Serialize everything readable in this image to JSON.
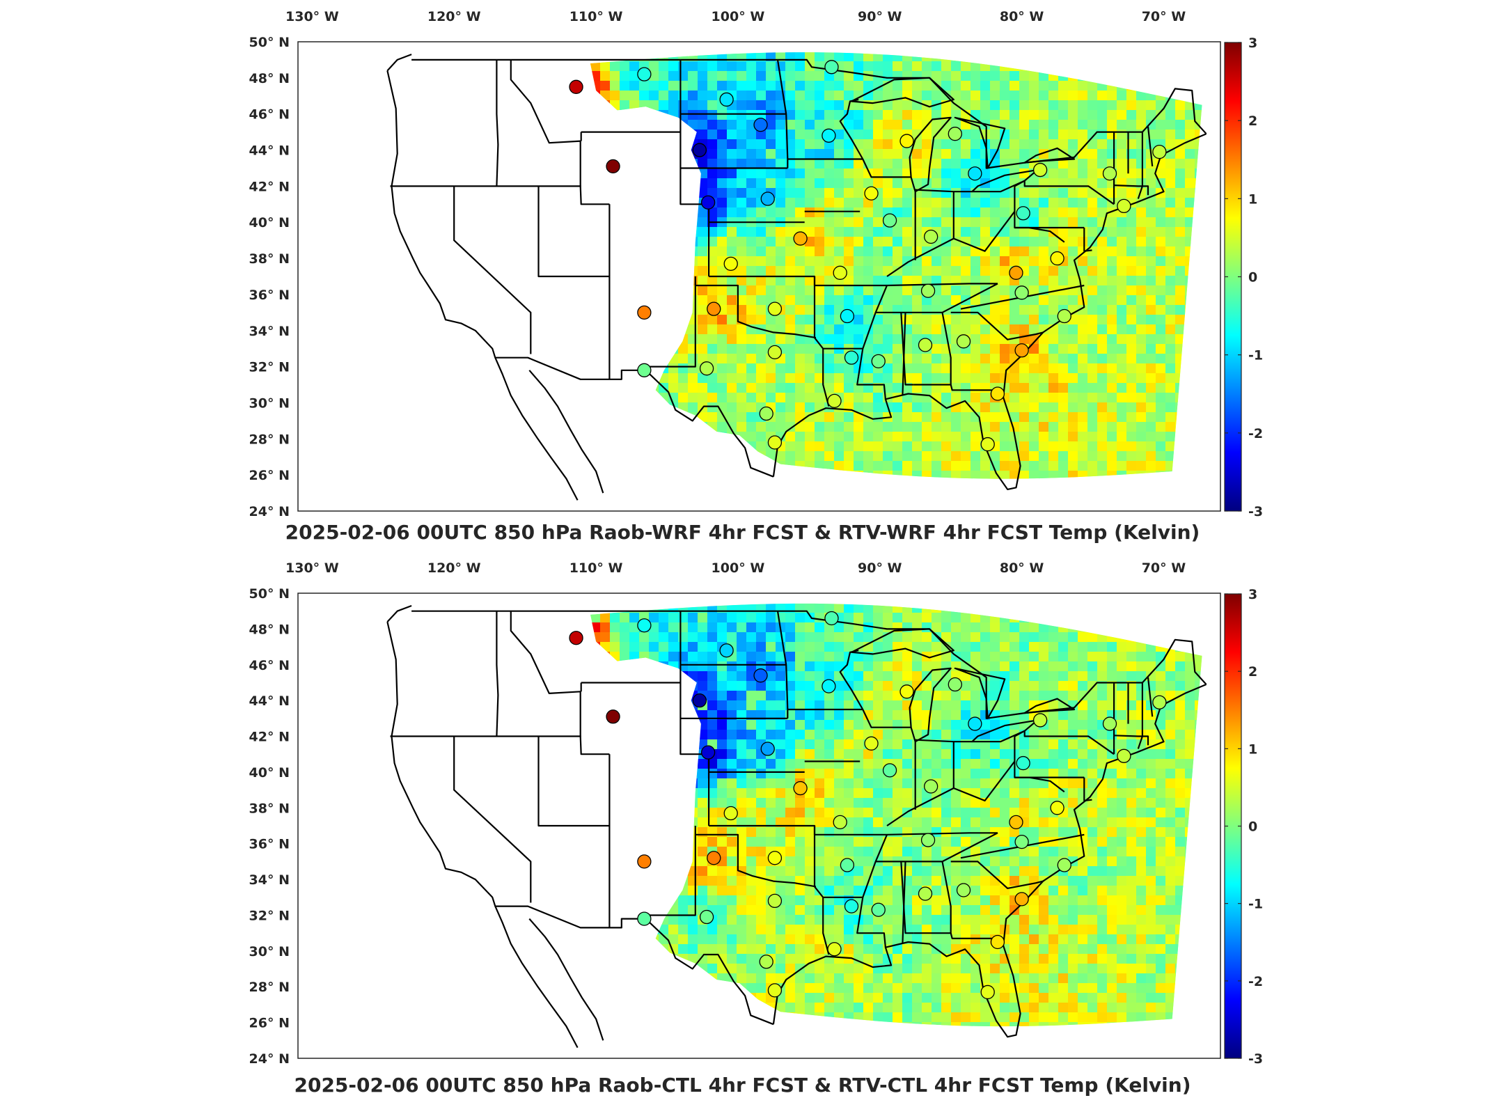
{
  "colors": {
    "jet": [
      "#00007f",
      "#0000ff",
      "#007fff",
      "#00ffff",
      "#7fff7f",
      "#ffff00",
      "#ff7f00",
      "#ff0000",
      "#7f0000"
    ],
    "state_lines": "#000000",
    "frame": "#262626"
  },
  "legend_position": "right (vertical colorbar)",
  "chart_data": [
    {
      "type": "heatmap",
      "title": "2025-02-06 00UTC 850 hPa Raob-WRF 4hr FCST & RTV-WRF 4hr FCST Temp (Kelvin)",
      "lon_ticks": [
        "130° W",
        "120° W",
        "110° W",
        "100° W",
        "90° W",
        "80° W",
        "70° W"
      ],
      "lon_values": [
        -130,
        -120,
        -110,
        -100,
        -90,
        -80,
        -70
      ],
      "lat_ticks": [
        "24° N",
        "26° N",
        "28° N",
        "30° N",
        "32° N",
        "34° N",
        "36° N",
        "38° N",
        "40° N",
        "42° N",
        "44° N",
        "46° N",
        "48° N",
        "50° N"
      ],
      "lat_values": [
        24,
        26,
        28,
        30,
        32,
        34,
        36,
        38,
        40,
        42,
        44,
        46,
        48,
        50
      ],
      "xlim": [
        -131,
        -66
      ],
      "ylim": [
        24,
        50
      ],
      "colorbar": {
        "ticks": [
          "-3",
          "-2",
          "-1",
          "0",
          "1",
          "2",
          "3"
        ],
        "range": [
          -3,
          3
        ],
        "units": "Kelvin"
      },
      "raob_stations": [
        {
          "lon": -111.4,
          "lat": 47.5,
          "value": 2.6
        },
        {
          "lon": -106.6,
          "lat": 48.2,
          "value": -0.6
        },
        {
          "lon": -100.8,
          "lat": 46.8,
          "value": -0.9
        },
        {
          "lon": -98.4,
          "lat": 45.4,
          "value": -1.6
        },
        {
          "lon": -93.6,
          "lat": 44.8,
          "value": -0.8
        },
        {
          "lon": -93.4,
          "lat": 48.6,
          "value": -0.3
        },
        {
          "lon": -108.8,
          "lat": 43.1,
          "value": 3.0
        },
        {
          "lon": -102.7,
          "lat": 44.0,
          "value": -2.8
        },
        {
          "lon": -102.1,
          "lat": 41.1,
          "value": -2.4
        },
        {
          "lon": -97.9,
          "lat": 41.3,
          "value": -1.2
        },
        {
          "lon": -95.6,
          "lat": 39.1,
          "value": 1.2
        },
        {
          "lon": -100.5,
          "lat": 37.7,
          "value": 0.7
        },
        {
          "lon": -92.8,
          "lat": 37.2,
          "value": 0.6
        },
        {
          "lon": -88.1,
          "lat": 44.5,
          "value": 0.8
        },
        {
          "lon": -84.7,
          "lat": 44.9,
          "value": 0.2
        },
        {
          "lon": -83.3,
          "lat": 42.7,
          "value": -0.9
        },
        {
          "lon": -90.6,
          "lat": 41.6,
          "value": 0.7
        },
        {
          "lon": -89.3,
          "lat": 40.1,
          "value": -0.1
        },
        {
          "lon": -86.4,
          "lat": 39.2,
          "value": 0.3
        },
        {
          "lon": -79.9,
          "lat": 40.5,
          "value": -0.4
        },
        {
          "lon": -78.7,
          "lat": 42.9,
          "value": 0.5
        },
        {
          "lon": -73.8,
          "lat": 42.7,
          "value": 0.3
        },
        {
          "lon": -70.3,
          "lat": 43.9,
          "value": 0.4
        },
        {
          "lon": -72.8,
          "lat": 40.9,
          "value": 0.5
        },
        {
          "lon": -77.5,
          "lat": 38.0,
          "value": 0.8
        },
        {
          "lon": -80.4,
          "lat": 37.2,
          "value": 1.3
        },
        {
          "lon": -86.6,
          "lat": 36.2,
          "value": 0.2
        },
        {
          "lon": -80.0,
          "lat": 36.1,
          "value": 0.1
        },
        {
          "lon": -77.0,
          "lat": 34.8,
          "value": 0.3
        },
        {
          "lon": -80.0,
          "lat": 32.9,
          "value": 1.3
        },
        {
          "lon": -81.7,
          "lat": 30.5,
          "value": 0.9
        },
        {
          "lon": -82.4,
          "lat": 27.7,
          "value": 0.6
        },
        {
          "lon": -84.1,
          "lat": 33.4,
          "value": 0.3
        },
        {
          "lon": -86.8,
          "lat": 33.2,
          "value": 0.4
        },
        {
          "lon": -90.1,
          "lat": 32.3,
          "value": -0.1
        },
        {
          "lon": -92.0,
          "lat": 32.5,
          "value": -0.5
        },
        {
          "lon": -92.3,
          "lat": 34.8,
          "value": -0.8
        },
        {
          "lon": -93.2,
          "lat": 30.1,
          "value": 0.5
        },
        {
          "lon": -97.4,
          "lat": 27.8,
          "value": 0.6
        },
        {
          "lon": -98.0,
          "lat": 29.4,
          "value": 0.2
        },
        {
          "lon": -97.4,
          "lat": 32.8,
          "value": 0.5
        },
        {
          "lon": -97.4,
          "lat": 35.2,
          "value": 0.6
        },
        {
          "lon": -101.7,
          "lat": 35.2,
          "value": 1.4
        },
        {
          "lon": -102.2,
          "lat": 31.9,
          "value": 0.3
        },
        {
          "lon": -106.6,
          "lat": 35.0,
          "value": 1.5
        },
        {
          "lon": -106.6,
          "lat": 31.8,
          "value": -0.1
        }
      ]
    },
    {
      "type": "heatmap",
      "title": "2025-02-06 00UTC 850 hPa Raob-CTL 4hr FCST & RTV-CTL 4hr FCST Temp (Kelvin)",
      "lon_ticks": [
        "130° W",
        "120° W",
        "110° W",
        "100° W",
        "90° W",
        "80° W",
        "70° W"
      ],
      "lon_values": [
        -130,
        -120,
        -110,
        -100,
        -90,
        -80,
        -70
      ],
      "lat_ticks": [
        "24° N",
        "26° N",
        "28° N",
        "30° N",
        "32° N",
        "34° N",
        "36° N",
        "38° N",
        "40° N",
        "42° N",
        "44° N",
        "46° N",
        "48° N",
        "50° N"
      ],
      "lat_values": [
        24,
        26,
        28,
        30,
        32,
        34,
        36,
        38,
        40,
        42,
        44,
        46,
        48,
        50
      ],
      "xlim": [
        -131,
        -66
      ],
      "ylim": [
        24,
        50
      ],
      "colorbar": {
        "ticks": [
          "-3",
          "-2",
          "-1",
          "0",
          "1",
          "2",
          "3"
        ],
        "range": [
          -3,
          3
        ],
        "units": "Kelvin"
      },
      "raob_stations": [
        {
          "lon": -111.4,
          "lat": 47.5,
          "value": 2.6
        },
        {
          "lon": -106.6,
          "lat": 48.2,
          "value": -0.7
        },
        {
          "lon": -100.8,
          "lat": 46.8,
          "value": -1.0
        },
        {
          "lon": -98.4,
          "lat": 45.4,
          "value": -1.7
        },
        {
          "lon": -93.6,
          "lat": 44.8,
          "value": -0.8
        },
        {
          "lon": -93.4,
          "lat": 48.6,
          "value": -0.3
        },
        {
          "lon": -108.8,
          "lat": 43.1,
          "value": 3.0
        },
        {
          "lon": -102.7,
          "lat": 44.0,
          "value": -2.8
        },
        {
          "lon": -102.1,
          "lat": 41.1,
          "value": -2.5
        },
        {
          "lon": -97.9,
          "lat": 41.3,
          "value": -1.3
        },
        {
          "lon": -95.6,
          "lat": 39.1,
          "value": 1.1
        },
        {
          "lon": -100.5,
          "lat": 37.7,
          "value": 0.6
        },
        {
          "lon": -92.8,
          "lat": 37.2,
          "value": 0.4
        },
        {
          "lon": -88.1,
          "lat": 44.5,
          "value": 0.7
        },
        {
          "lon": -84.7,
          "lat": 44.9,
          "value": 0.1
        },
        {
          "lon": -83.3,
          "lat": 42.7,
          "value": -0.9
        },
        {
          "lon": -90.6,
          "lat": 41.6,
          "value": 0.6
        },
        {
          "lon": -89.3,
          "lat": 40.1,
          "value": -0.2
        },
        {
          "lon": -86.4,
          "lat": 39.2,
          "value": 0.2
        },
        {
          "lon": -79.9,
          "lat": 40.5,
          "value": -0.5
        },
        {
          "lon": -78.7,
          "lat": 42.9,
          "value": 0.4
        },
        {
          "lon": -73.8,
          "lat": 42.7,
          "value": 0.2
        },
        {
          "lon": -70.3,
          "lat": 43.9,
          "value": 0.3
        },
        {
          "lon": -72.8,
          "lat": 40.9,
          "value": 0.4
        },
        {
          "lon": -77.5,
          "lat": 38.0,
          "value": 0.7
        },
        {
          "lon": -80.4,
          "lat": 37.2,
          "value": 1.1
        },
        {
          "lon": -86.6,
          "lat": 36.2,
          "value": 0.1
        },
        {
          "lon": -80.0,
          "lat": 36.1,
          "value": 0.0
        },
        {
          "lon": -77.0,
          "lat": 34.8,
          "value": 0.2
        },
        {
          "lon": -80.0,
          "lat": 32.9,
          "value": 1.2
        },
        {
          "lon": -81.7,
          "lat": 30.5,
          "value": 0.9
        },
        {
          "lon": -82.4,
          "lat": 27.7,
          "value": 0.6
        },
        {
          "lon": -84.1,
          "lat": 33.4,
          "value": 0.2
        },
        {
          "lon": -86.8,
          "lat": 33.2,
          "value": 0.3
        },
        {
          "lon": -90.1,
          "lat": 32.3,
          "value": -0.2
        },
        {
          "lon": -92.0,
          "lat": 32.5,
          "value": -0.6
        },
        {
          "lon": -92.3,
          "lat": 34.8,
          "value": -0.2
        },
        {
          "lon": -93.2,
          "lat": 30.1,
          "value": 0.6
        },
        {
          "lon": -97.4,
          "lat": 27.8,
          "value": 0.6
        },
        {
          "lon": -98.0,
          "lat": 29.4,
          "value": 0.3
        },
        {
          "lon": -97.4,
          "lat": 32.8,
          "value": 0.4
        },
        {
          "lon": -97.4,
          "lat": 35.2,
          "value": 0.7
        },
        {
          "lon": -101.7,
          "lat": 35.2,
          "value": 1.5
        },
        {
          "lon": -102.2,
          "lat": 31.9,
          "value": -0.1
        },
        {
          "lon": -106.6,
          "lat": 35.0,
          "value": 1.5
        },
        {
          "lon": -106.6,
          "lat": 31.8,
          "value": -0.2
        }
      ]
    }
  ]
}
